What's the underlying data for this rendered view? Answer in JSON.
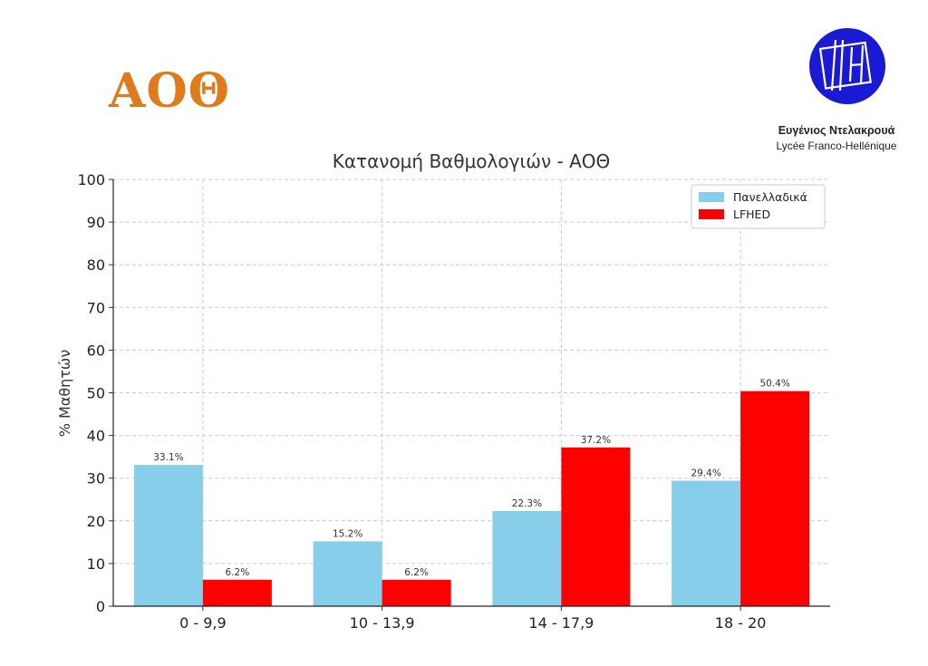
{
  "header": {
    "subject": "ΑΟΘ",
    "school_name": "Ευγένιος Ντελακρουά",
    "school_subtitle": "Lycée Franco-Hellénique",
    "logo_text": "FH"
  },
  "colors": {
    "subject": "#e07b1c",
    "national": "#87ceeb",
    "school": "#ff0000",
    "logo": "#1a1ad4"
  },
  "chart_data": {
    "type": "bar",
    "title": "Κατανομή Βαθμολογιών - ΑΟΘ",
    "xlabel": "",
    "ylabel": "% Μαθητών",
    "categories": [
      "0 - 9,9",
      "10 - 13,9",
      "14 - 17,9",
      "18 - 20"
    ],
    "series": [
      {
        "name": "Πανελλαδικά",
        "values": [
          33.1,
          15.2,
          22.3,
          29.4
        ],
        "labels": [
          "33.1%",
          "15.2%",
          "22.3%",
          "29.4%"
        ],
        "color": "#87ceeb"
      },
      {
        "name": "LFHED",
        "values": [
          6.2,
          6.2,
          37.2,
          50.4
        ],
        "labels": [
          "6.2%",
          "6.2%",
          "37.2%",
          "50.4%"
        ],
        "color": "#ff0000"
      }
    ],
    "ylim": [
      0,
      100
    ],
    "yticks": [
      "0",
      "10",
      "20",
      "30",
      "40",
      "50",
      "60",
      "70",
      "80",
      "90",
      "100"
    ],
    "grid": true,
    "legend": "top-right"
  }
}
